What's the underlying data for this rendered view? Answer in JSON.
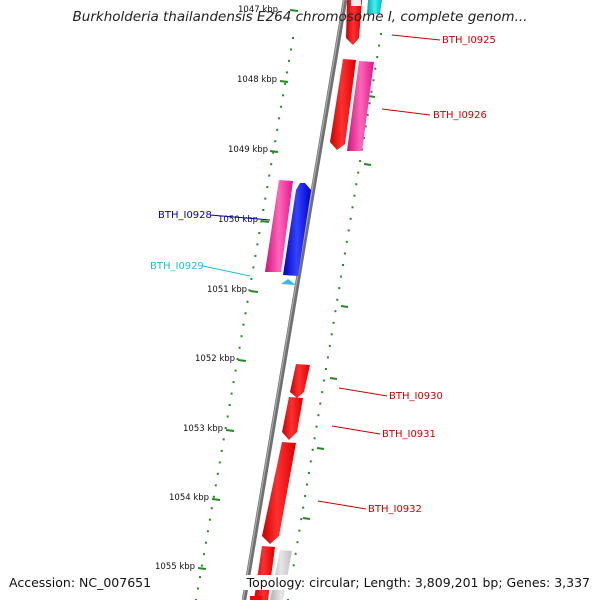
{
  "title": "Burkholderia thailandensis E264 chromosome I, complete genom...",
  "footer": {
    "accession": "Accession: NC_007651",
    "topology": "Topology: circular; Length: 3,809,201 bp; Genes: 3,337"
  },
  "ruler": {
    "ticks": [
      "1047 kbp",
      "1048 kbp",
      "1049 kbp",
      "1050 kbp",
      "1051 kbp",
      "1052 kbp",
      "1053 kbp",
      "1054 kbp",
      "1055 kbp"
    ]
  },
  "genes": [
    {
      "id": "BTH_I0925",
      "strand": "reverse",
      "color": "#cc0000"
    },
    {
      "id": "BTH_I0926",
      "strand": "reverse",
      "color": "#cc0000"
    },
    {
      "id": "BTH_I0928",
      "strand": "forward",
      "color": "#0000aa"
    },
    {
      "id": "BTH_I0929",
      "strand": "forward",
      "color": "#22bbdd"
    },
    {
      "id": "BTH_I0930",
      "strand": "reverse",
      "color": "#cc0000"
    },
    {
      "id": "BTH_I0931",
      "strand": "reverse",
      "color": "#cc0000"
    },
    {
      "id": "BTH_I0932",
      "strand": "reverse",
      "color": "#cc0000"
    }
  ],
  "colors": {
    "backbone": "#808080",
    "ruler": "#228b22",
    "cds_red": "#ff0000",
    "cds_pink": "#ff1493",
    "cds_blue": "#0000ff",
    "cds_cyan": "#00cccc",
    "cds_gray": "#c8c8c8"
  }
}
